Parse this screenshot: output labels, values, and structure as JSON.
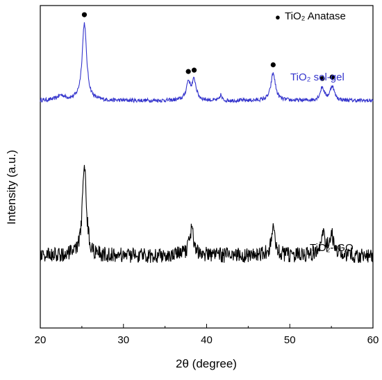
{
  "chart_data": {
    "type": "line",
    "xlabel": "2θ (degree)",
    "ylabel": "Intensity (a.u.)",
    "xlim": [
      20,
      60
    ],
    "ylim": [
      0,
      100
    ],
    "x_ticks": [
      "20",
      "30",
      "40",
      "50",
      "60"
    ],
    "y_ticks_shown": false,
    "legend": {
      "marker": "●",
      "label": "TiO₂ Anatase",
      "placement": "top-right"
    },
    "series": [
      {
        "name": "TiO₂ sol-gel",
        "color": "#3333cc",
        "baseline": 70.5,
        "peaks": [
          {
            "x": 22.5,
            "height": 1.5,
            "width": 0.6
          },
          {
            "x": 25.3,
            "height": 24.0,
            "width": 0.32
          },
          {
            "x": 37.8,
            "height": 5.5,
            "width": 0.3
          },
          {
            "x": 38.5,
            "height": 6.0,
            "width": 0.3
          },
          {
            "x": 41.7,
            "height": 1.8,
            "width": 0.12
          },
          {
            "x": 48.0,
            "height": 8.5,
            "width": 0.32
          },
          {
            "x": 53.9,
            "height": 4.0,
            "width": 0.3
          },
          {
            "x": 55.1,
            "height": 4.5,
            "width": 0.3
          }
        ],
        "noise": 0.6
      },
      {
        "name": "TiO₂-rGO",
        "color": "#000000",
        "baseline": 22.5,
        "peaks": [
          {
            "x": 25.3,
            "height": 29.0,
            "width": 0.28
          },
          {
            "x": 38.2,
            "height": 8.0,
            "width": 0.35
          },
          {
            "x": 48.0,
            "height": 9.0,
            "width": 0.28
          },
          {
            "x": 54.0,
            "height": 6.0,
            "width": 0.3
          },
          {
            "x": 55.0,
            "height": 6.5,
            "width": 0.3
          }
        ],
        "noise": 2.4
      }
    ],
    "anatase_markers_x": [
      25.3,
      37.8,
      38.5,
      48.0,
      53.9,
      55.1
    ],
    "series_labels": [
      {
        "text": "TiO₂ sol-gel",
        "color": "#3333cc"
      },
      {
        "text": "TiO₂-rGO",
        "color": "#000000"
      }
    ]
  }
}
